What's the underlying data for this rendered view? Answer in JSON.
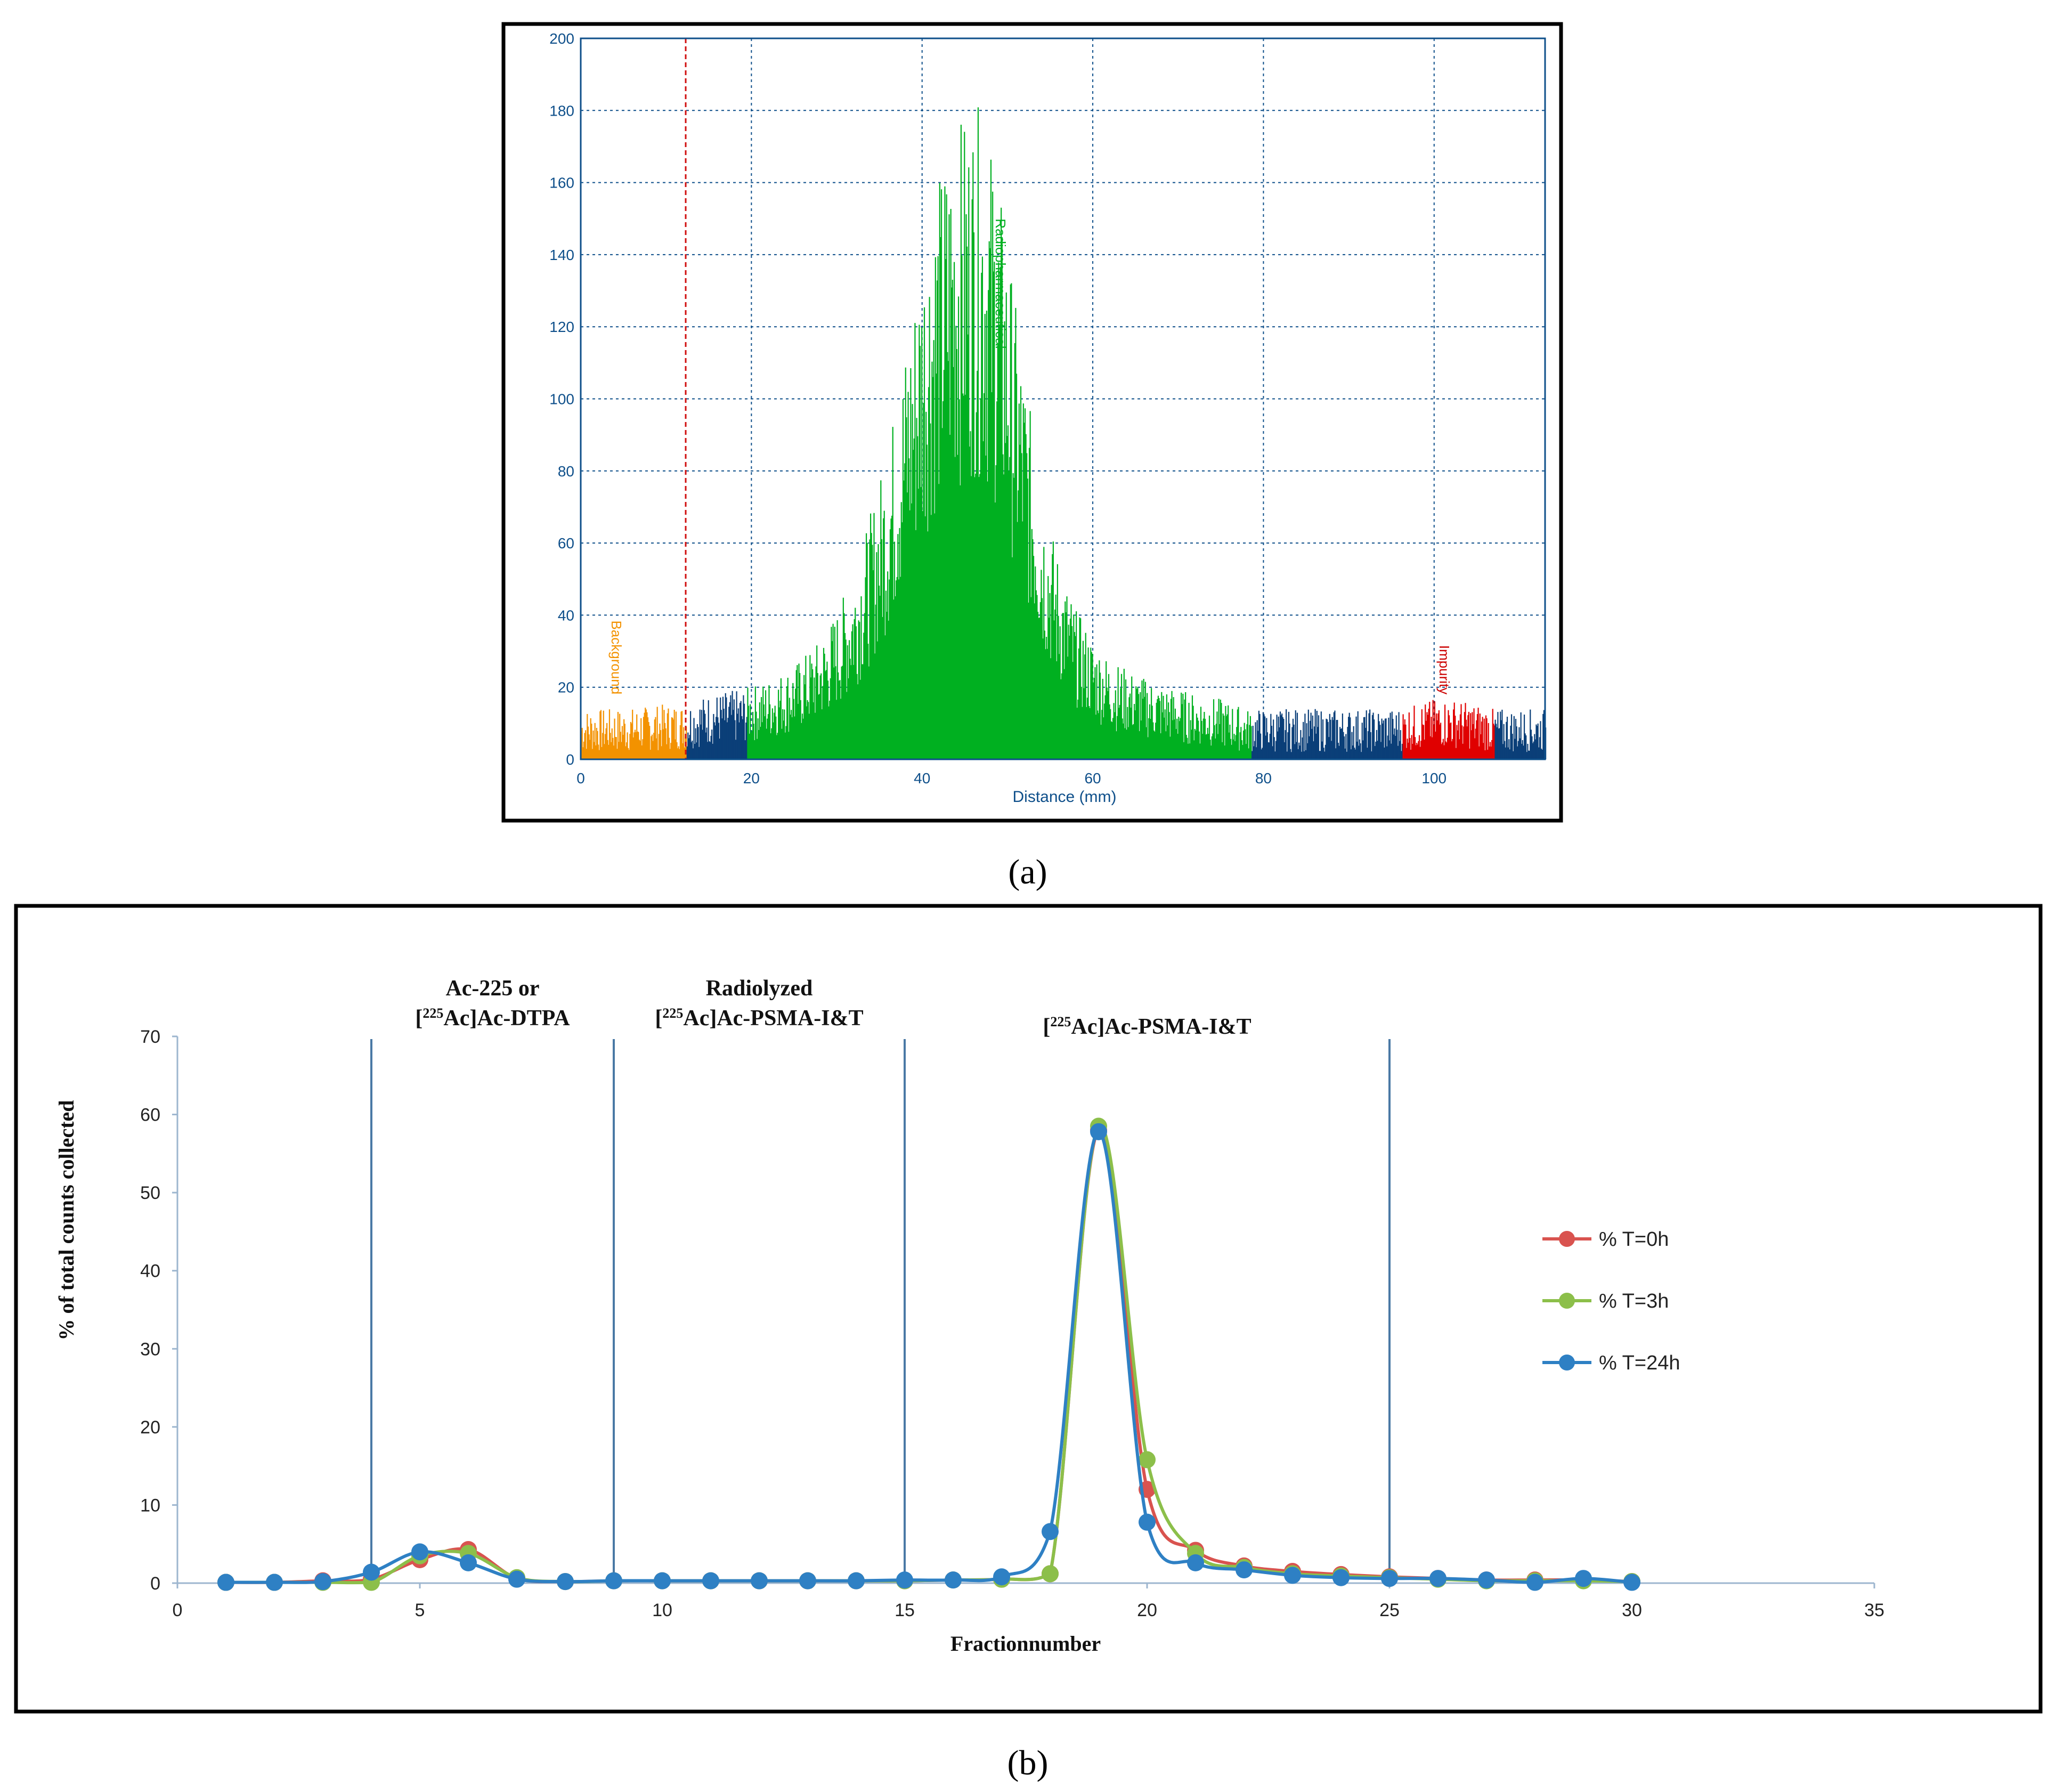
{
  "panel_a": {
    "caption": "(a)",
    "region_labels": [
      {
        "text": "Background",
        "color": "#f39200",
        "x": 3
      },
      {
        "text": "Radiopharmaceutical",
        "color": "#00b020",
        "x": 48
      },
      {
        "text": "Impurity",
        "color": "#cc0000",
        "x": 100
      }
    ]
  },
  "panel_b": {
    "caption": "(b)",
    "region_labels": [
      {
        "lines": [
          "Ac-225 or",
          "[225Ac]Ac-DTPA"
        ],
        "x": 6.5
      },
      {
        "lines": [
          "Radiolyzed",
          "[225Ac]Ac-PSMA-I&T"
        ],
        "x": 12
      },
      {
        "lines": [
          "[225Ac]Ac-PSMA-I&T"
        ],
        "x": 20
      }
    ]
  },
  "chart_data": [
    {
      "type": "bar",
      "title": "",
      "xlabel": "Distance (mm)",
      "ylabel": "",
      "xlim": [
        0,
        113
      ],
      "ylim": [
        0,
        200
      ],
      "xticks": [
        0,
        20,
        40,
        60,
        80,
        100
      ],
      "yticks": [
        0,
        20,
        40,
        60,
        80,
        100,
        120,
        140,
        160,
        180,
        200
      ],
      "grid": true,
      "region_boundary_x": 12.3,
      "regions": [
        {
          "name": "Background",
          "from": 0,
          "to": 12.3,
          "color": "#f39200"
        },
        {
          "name": "",
          "from": 12.3,
          "to": 19.5,
          "color": "#0b3f78"
        },
        {
          "name": "Radiopharmaceutical",
          "from": 19.5,
          "to": 78.5,
          "color": "#00b020"
        },
        {
          "name": "",
          "from": 78.5,
          "to": 96.2,
          "color": "#0b3f78"
        },
        {
          "name": "Impurity",
          "from": 96.2,
          "to": 107,
          "color": "#e00000"
        },
        {
          "name": "",
          "from": 107,
          "to": 113,
          "color": "#0b3f78"
        }
      ],
      "profile": {
        "x": [
          0,
          5,
          10,
          12,
          15,
          19,
          22,
          25,
          28,
          30,
          32,
          34,
          36,
          38,
          40,
          41,
          42,
          43,
          44,
          45,
          46,
          47,
          48,
          49,
          50,
          51,
          52,
          53,
          54,
          56,
          58,
          60,
          62,
          65,
          68,
          70,
          72,
          75,
          78,
          80,
          85,
          90,
          95,
          98,
          100,
          102,
          105,
          107,
          110,
          113
        ],
        "y": [
          8,
          8,
          9,
          9,
          11,
          12,
          14,
          17,
          22,
          28,
          36,
          48,
          62,
          82,
          102,
          110,
          116,
          122,
          126,
          128,
          130,
          128,
          122,
          113,
          102,
          88,
          76,
          63,
          52,
          38,
          28,
          22,
          18,
          15,
          13,
          12,
          11,
          10,
          8,
          8,
          8,
          8,
          8,
          9,
          10,
          10,
          9,
          8,
          8,
          8
        ]
      }
    },
    {
      "type": "line",
      "title": "",
      "xlabel": "Fractionnumber",
      "ylabel": "% of total counts collected",
      "xlim": [
        0,
        35
      ],
      "ylim": [
        0,
        70
      ],
      "xticks": [
        0,
        5,
        10,
        15,
        20,
        25,
        30,
        35
      ],
      "yticks": [
        0,
        10,
        20,
        30,
        40,
        50,
        60,
        70
      ],
      "grid": false,
      "legend": "right",
      "vlines": [
        4,
        9,
        15,
        25
      ],
      "x": [
        1,
        2,
        3,
        4,
        5,
        6,
        7,
        8,
        9,
        10,
        11,
        12,
        13,
        14,
        15,
        16,
        17,
        18,
        19,
        20,
        21,
        22,
        23,
        24,
        25,
        26,
        27,
        28,
        29,
        30
      ],
      "series": [
        {
          "name": "% T=0h",
          "color": "#d9534f",
          "values": [
            0.1,
            0.1,
            0.3,
            0.5,
            3.0,
            4.3,
            0.6,
            0.2,
            0.3,
            0.3,
            0.3,
            0.3,
            0.3,
            0.3,
            0.3,
            0.4,
            0.5,
            1.2,
            58.0,
            12.0,
            4.2,
            2.2,
            1.5,
            1.1,
            0.8,
            0.6,
            0.4,
            0.4,
            0.4,
            0.2
          ]
        },
        {
          "name": "% T=3h",
          "color": "#8cbf4a",
          "values": [
            0.1,
            0.1,
            0.1,
            0.1,
            3.5,
            3.8,
            0.7,
            0.2,
            0.3,
            0.3,
            0.3,
            0.3,
            0.3,
            0.3,
            0.3,
            0.4,
            0.5,
            1.2,
            58.5,
            15.8,
            3.8,
            2.0,
            1.2,
            0.9,
            0.7,
            0.5,
            0.3,
            0.3,
            0.3,
            0.2
          ]
        },
        {
          "name": "% T=24h",
          "color": "#2e80c4",
          "values": [
            0.1,
            0.1,
            0.2,
            1.4,
            4.0,
            2.6,
            0.5,
            0.2,
            0.3,
            0.3,
            0.3,
            0.3,
            0.3,
            0.3,
            0.4,
            0.4,
            0.8,
            6.6,
            57.8,
            7.8,
            2.6,
            1.7,
            1.0,
            0.7,
            0.6,
            0.6,
            0.4,
            0.1,
            0.6,
            0.1
          ]
        }
      ]
    }
  ]
}
